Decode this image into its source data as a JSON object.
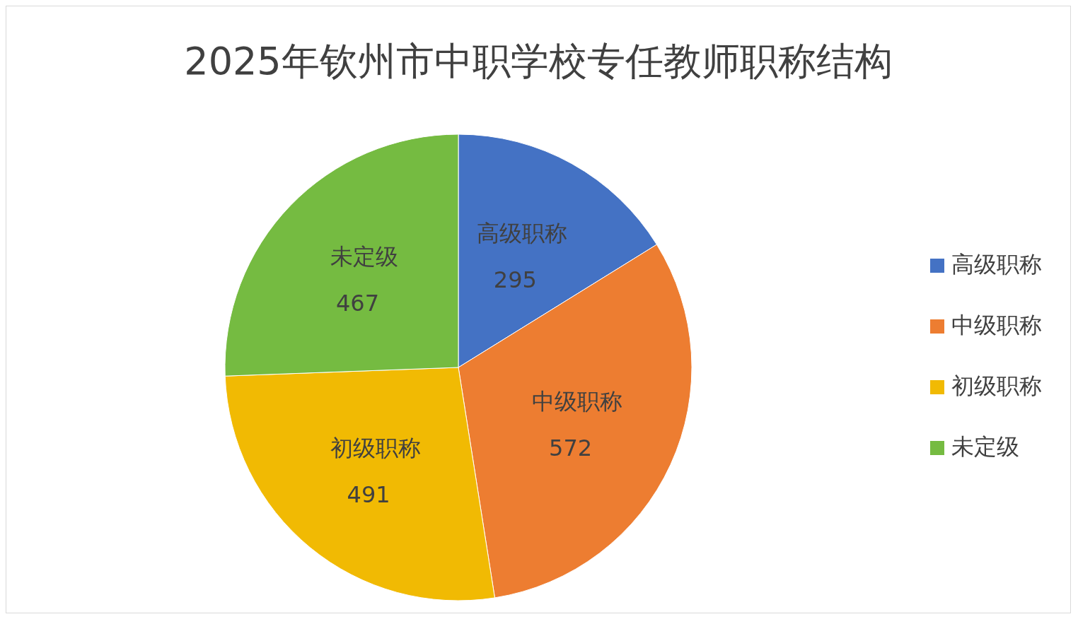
{
  "chart_data": {
    "type": "pie",
    "title": "2025年钦州市中职学校专任教师职称结构",
    "categories": [
      "高级职称",
      "中级职称",
      "初级职称",
      "未定级"
    ],
    "values": [
      295,
      572,
      491,
      467
    ],
    "colors": [
      "#4472c4",
      "#ed7d31",
      "#f1ba03",
      "#75bb41"
    ],
    "data_labels": true,
    "legend": "right"
  }
}
